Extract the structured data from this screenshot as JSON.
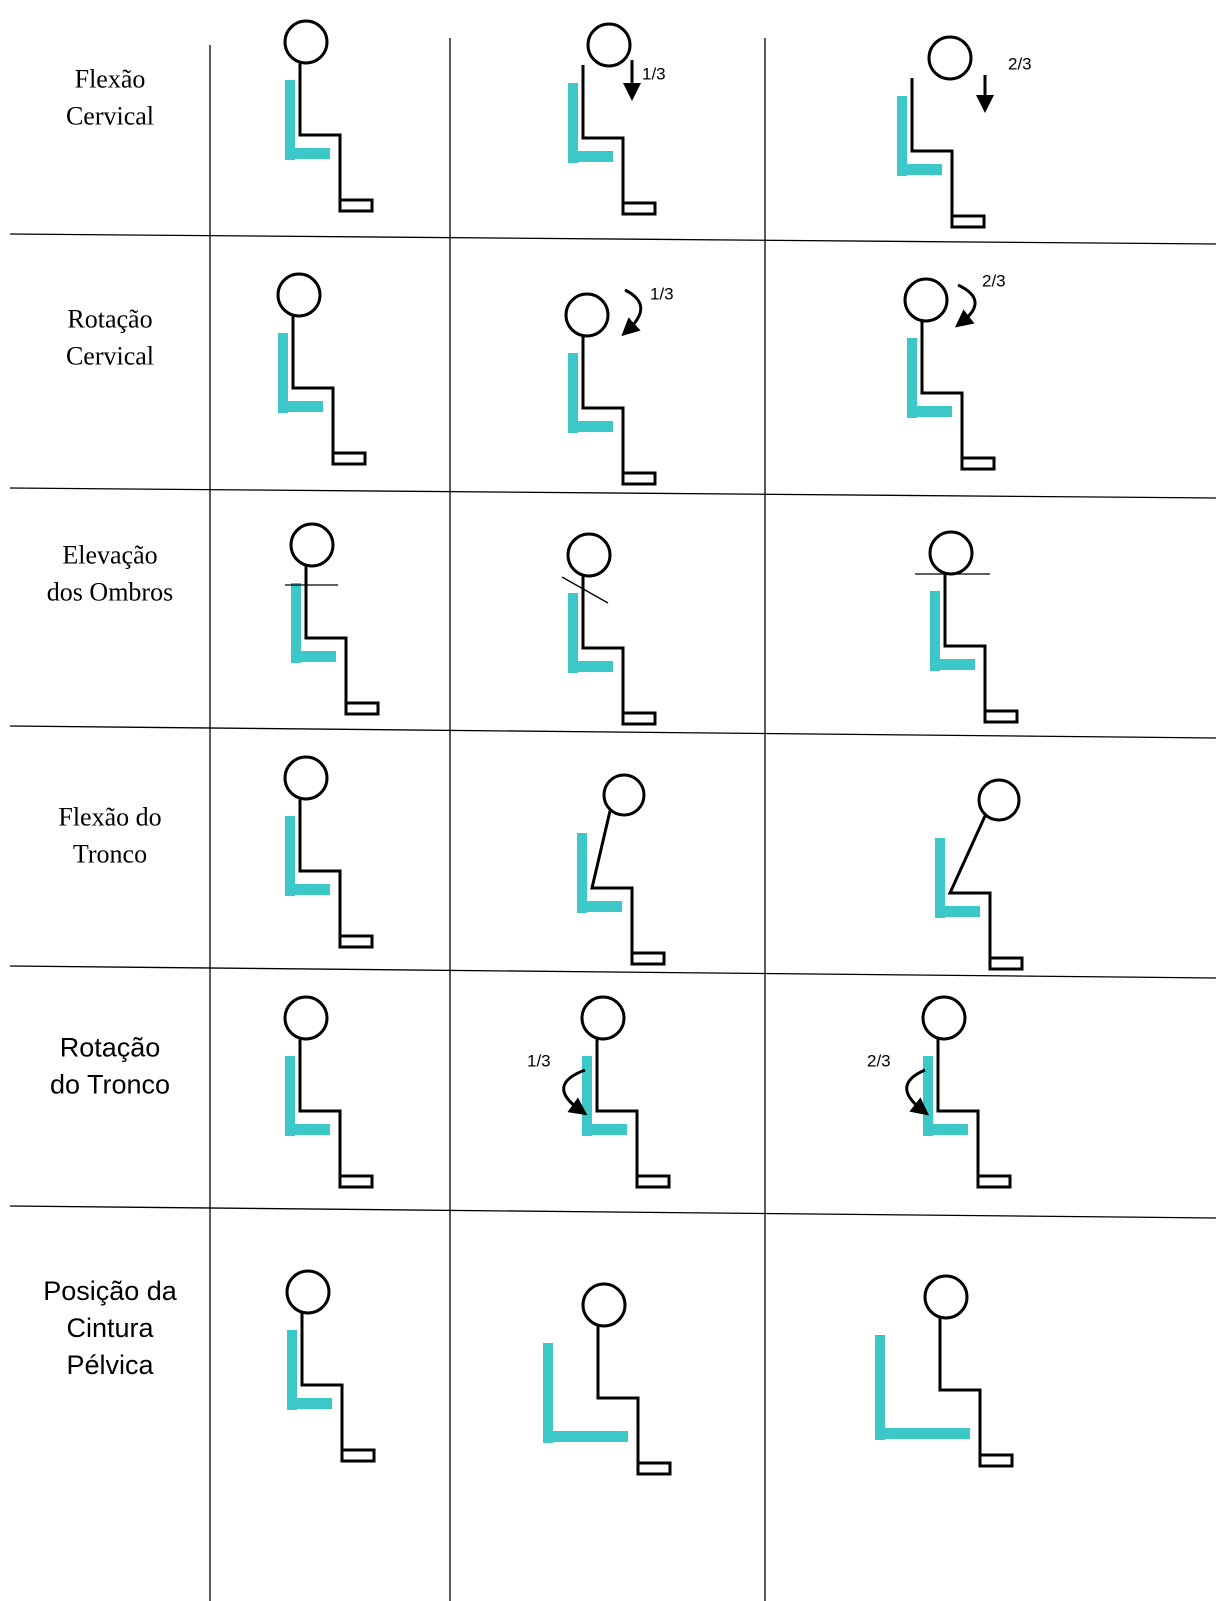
{
  "rows": [
    {
      "label": [
        "Flexão",
        "Cervical"
      ],
      "marks": [
        "1/3",
        "2/3"
      ]
    },
    {
      "label": [
        "Rotação",
        "Cervical"
      ],
      "marks": [
        "1/3",
        "2/3"
      ]
    },
    {
      "label": [
        "Elevação",
        "dos Ombros"
      ]
    },
    {
      "label": [
        "Flexão do",
        "Tronco"
      ]
    },
    {
      "label": [
        "Rotação",
        "do Tronco"
      ],
      "marks": [
        "1/3",
        "2/3"
      ]
    },
    {
      "label": [
        "Posição da",
        "Cintura",
        "Pélvica"
      ]
    }
  ]
}
